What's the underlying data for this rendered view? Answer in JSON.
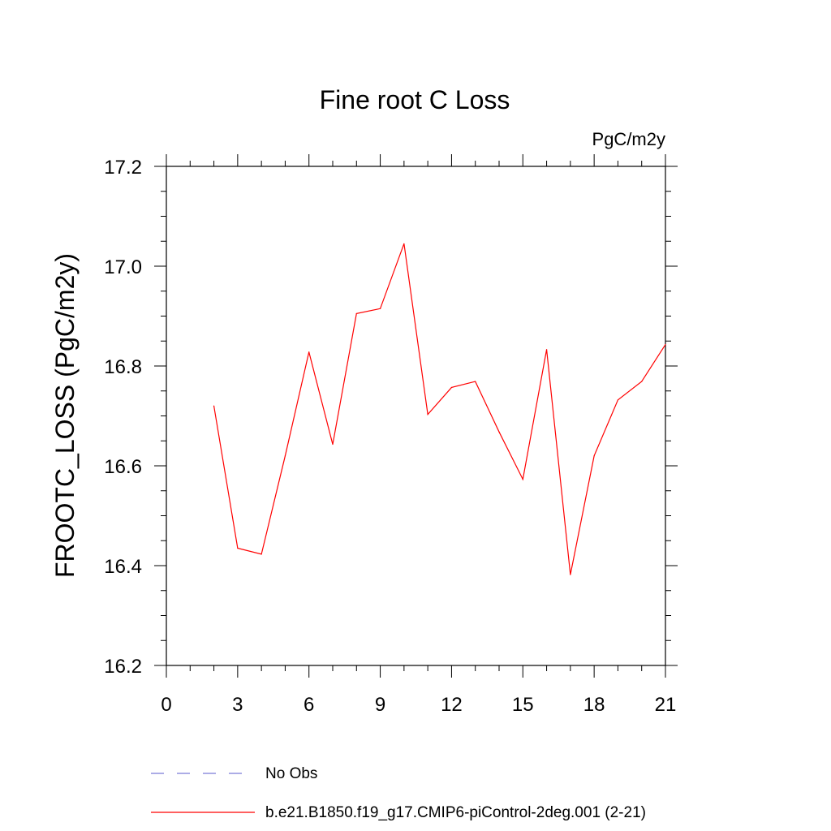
{
  "chart_data": {
    "type": "line",
    "title": "Fine root C Loss",
    "units_label": "PgC/m2y",
    "xlabel": "",
    "ylabel": "FROOTC_LOSS  (PgC/m2y)",
    "xlim": [
      0,
      21
    ],
    "ylim": [
      16.2,
      17.2
    ],
    "x_ticks": [
      0,
      3,
      6,
      9,
      12,
      15,
      18,
      21
    ],
    "x_tick_labels": [
      "0",
      "3",
      "6",
      "9",
      "12",
      "15",
      "18",
      "21"
    ],
    "y_ticks": [
      16.2,
      16.4,
      16.6,
      16.8,
      17.0,
      17.2
    ],
    "y_tick_labels": [
      "16.2",
      "16.4",
      "16.6",
      "16.8",
      "17.0",
      "17.2"
    ],
    "grid": false,
    "legend_position": "bottom",
    "series": [
      {
        "name": "No Obs",
        "color": "#7b7bd6",
        "style": "dashed",
        "x": [],
        "y": []
      },
      {
        "name": "b.e21.B1850.f19_g17.CMIP6-piControl-2deg.001 (2-21)",
        "color": "#ff0000",
        "style": "solid",
        "x": [
          2,
          3,
          4,
          5,
          6,
          7,
          8,
          9,
          10,
          11,
          12,
          13,
          14,
          15,
          16,
          17,
          18,
          19,
          20,
          21
        ],
        "y": [
          16.72,
          16.435,
          16.423,
          16.62,
          16.828,
          16.643,
          16.905,
          16.915,
          17.045,
          16.703,
          16.757,
          16.769,
          16.668,
          16.573,
          16.833,
          16.382,
          16.62,
          16.732,
          16.769,
          16.843
        ]
      }
    ]
  }
}
